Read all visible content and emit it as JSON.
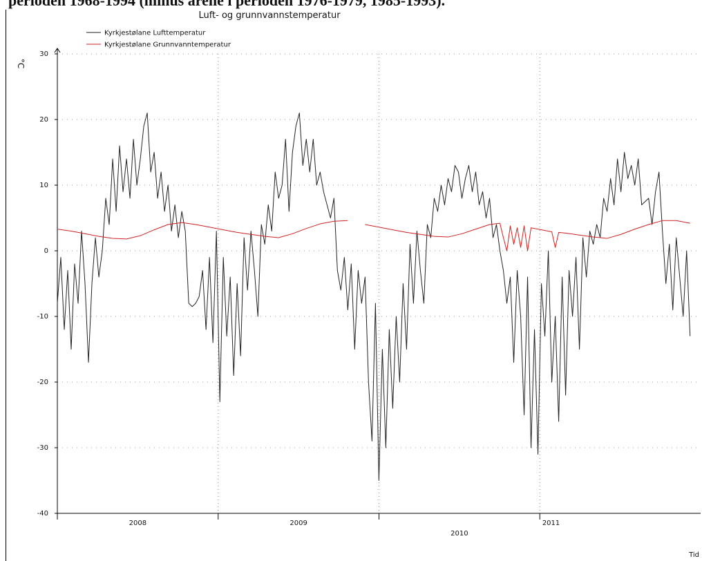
{
  "caption": "perioden 1968-1994 (minus årene i perioden 1976-1979, 1985-1993).",
  "chart_data": {
    "type": "line",
    "title": "Luft- og grunnvannstemperatur",
    "y_label": "°C",
    "x_label": "Tid",
    "xlim": [
      2008,
      2012
    ],
    "xticks": [
      {
        "value": 2008,
        "label": "2008"
      },
      {
        "value": 2009,
        "label": "2009"
      },
      {
        "value": 2010,
        "label": "2010"
      },
      {
        "value": 2011,
        "label": "2011"
      }
    ],
    "ylim": [
      -40,
      30
    ],
    "yticks": [
      -40,
      -30,
      -20,
      -10,
      0,
      10,
      20,
      30
    ],
    "grid": true,
    "legend": "top-left",
    "series": [
      {
        "name": "Kyrkjestølane  Lufttemperatur",
        "color": "#222222",
        "x": [
          2008,
          2008.0215,
          2008.043,
          2008.0645,
          2008.086,
          2008.1075,
          2008.129,
          2008.1505,
          2008.172,
          2008.1935,
          2008.215,
          2008.2365,
          2008.258,
          2008.2795,
          2008.301,
          2008.3225,
          2008.344,
          2008.3655,
          2008.387,
          2008.4085,
          2008.43,
          2008.4515,
          2008.473,
          2008.4945,
          2008.516,
          2008.5375,
          2008.559,
          2008.5805,
          2008.602,
          2008.6235,
          2008.645,
          2008.6665,
          2008.688,
          2008.7095,
          2008.731,
          2008.7525,
          2008.774,
          2008.7955,
          2008.817,
          2008.8385,
          2008.86,
          2008.8815,
          2008.903,
          2008.9245,
          2008.946,
          2008.9675,
          2008.989,
          2009.0105,
          2009.032,
          2009.0535,
          2009.075,
          2009.0965,
          2009.118,
          2009.1395,
          2009.161,
          2009.1825,
          2009.204,
          2009.2255,
          2009.247,
          2009.2685,
          2009.29,
          2009.3115,
          2009.333,
          2009.3545,
          2009.376,
          2009.3975,
          2009.419,
          2009.4405,
          2009.462,
          2009.4835,
          2009.505,
          2009.5265,
          2009.548,
          2009.5695,
          2009.591,
          2009.6125,
          2009.634,
          2009.6555,
          2009.677,
          2009.6985,
          2009.72,
          2009.7415,
          2009.763,
          2009.7845,
          2009.806,
          2009.8275,
          2009.849,
          2009.8705,
          2009.892,
          2009.9135,
          2009.935,
          2009.9565,
          2009.978,
          2009.9995,
          2010.021,
          2010.0425,
          2010.064,
          2010.0855,
          2010.107,
          2010.1285,
          2010.15,
          2010.1715,
          2010.193,
          2010.2145,
          2010.236,
          2010.2575,
          2010.279,
          2010.3005,
          2010.322,
          2010.3435,
          2010.365,
          2010.3865,
          2010.408,
          2010.4295,
          2010.451,
          2010.4725,
          2010.494,
          2010.5155,
          2010.537,
          2010.5585,
          2010.58,
          2010.6015,
          2010.623,
          2010.6445,
          2010.666,
          2010.6875,
          2010.709,
          2010.7305,
          2010.752,
          2010.7735,
          2010.795,
          2010.8165,
          2010.838,
          2010.8595,
          2010.881,
          2010.9025,
          2010.924,
          2010.9455,
          2010.967,
          2010.9885,
          2011.01,
          2011.0315,
          2011.053,
          2011.0745,
          2011.096,
          2011.1175,
          2011.139,
          2011.1605,
          2011.182,
          2011.2035,
          2011.225,
          2011.2465,
          2011.268,
          2011.2895,
          2011.311,
          2011.3325,
          2011.354,
          2011.3755,
          2011.397,
          2011.4185,
          2011.44,
          2011.4615,
          2011.483,
          2011.5045,
          2011.526,
          2011.5475,
          2011.569,
          2011.5905,
          2011.612,
          2011.6335,
          2011.655,
          2011.6765,
          2011.698,
          2011.7195,
          2011.741,
          2011.7625,
          2011.784,
          2011.8055,
          2011.827,
          2011.8485,
          2011.87,
          2011.8915,
          2011.913,
          2011.9345
        ],
        "values": [
          -8,
          -1,
          -12,
          -3,
          -15,
          -2,
          -8,
          3,
          -5,
          -17,
          -5,
          2,
          -4,
          0,
          8,
          4,
          14,
          6,
          16,
          9,
          14,
          8,
          17,
          10,
          14,
          19,
          21,
          12,
          15,
          8,
          12,
          6,
          10,
          3,
          7,
          2,
          6,
          3,
          -8,
          -8.5,
          -8,
          -7,
          -3,
          -12,
          -1,
          -14,
          3,
          -23,
          -1,
          -13,
          -4,
          -19,
          -5,
          -16,
          2,
          -6,
          3,
          -3,
          -10,
          4,
          1,
          7,
          3,
          12,
          8,
          10,
          17,
          6,
          15,
          19,
          21,
          13,
          17,
          12,
          17,
          10,
          12,
          9,
          7,
          5,
          8,
          -3,
          -6,
          -1,
          -9,
          -2,
          -15,
          -3,
          -8,
          -4,
          -20,
          -29,
          -8,
          -35,
          -15,
          -30,
          -12,
          -24,
          -10,
          -20,
          -5,
          -15,
          1,
          -8,
          3,
          -3,
          -8,
          4,
          2,
          8,
          6,
          10,
          7,
          11,
          9,
          13,
          12,
          8,
          11,
          13,
          9,
          12,
          7,
          9,
          5,
          8,
          2,
          4,
          0,
          -3,
          -8,
          -4,
          -17,
          -3,
          -10,
          -25,
          -4,
          -30,
          -12,
          -31,
          -5,
          -13,
          0,
          -20,
          -10,
          -26,
          -4,
          -22,
          -3,
          -10,
          -1,
          -15,
          2,
          -4,
          3,
          1,
          4,
          2,
          8,
          6,
          11,
          7,
          14,
          9,
          15,
          11,
          13,
          10,
          14,
          7,
          7.5,
          8,
          4,
          9,
          12,
          3,
          -5,
          1,
          -9,
          2,
          -4,
          -10,
          0,
          -13
        ]
      },
      {
        "name": "Kyrkjestølane  Grunnvanntemperatur",
        "color": "#cc2222",
        "x": [
          2008,
          2008.086,
          2008.172,
          2008.258,
          2008.344,
          2008.43,
          2008.516,
          2008.602,
          2008.688,
          2008.774,
          2008.86,
          2008.946,
          2009.032,
          2009.118,
          2009.204,
          2009.29,
          2009.376,
          2009.462,
          2009.548,
          2009.634,
          2009.72,
          2009.806,
          2009.849,
          2009.9135,
          2009.9995,
          2010.0855,
          2010.1715,
          2010.2575,
          2010.3435,
          2010.4295,
          2010.5155,
          2010.6015,
          2010.6875,
          2010.752,
          2010.7735,
          2010.795,
          2010.8165,
          2010.838,
          2010.8595,
          2010.881,
          2010.9025,
          2010.924,
          2010.9455,
          2011.01,
          2011.0745,
          2011.096,
          2011.1175,
          2011.1605,
          2011.2465,
          2011.3325,
          2011.4185,
          2011.5045,
          2011.5905,
          2011.6765,
          2011.7625,
          2011.8485,
          2011.9345
        ],
        "values": [
          3.3,
          3.0,
          2.6,
          2.2,
          1.9,
          1.8,
          2.3,
          3.2,
          4.0,
          4.3,
          4.0,
          3.6,
          3.2,
          2.8,
          2.5,
          2.2,
          2.0,
          2.6,
          3.4,
          4.1,
          4.5,
          4.6,
          null,
          4.0,
          3.6,
          3.2,
          2.8,
          2.5,
          2.2,
          2.1,
          2.6,
          3.3,
          4.0,
          4.2,
          2.0,
          0,
          3.8,
          1.0,
          3.5,
          0.5,
          3.8,
          0,
          3.5,
          3.2,
          2.9,
          0.5,
          2.8,
          2.7,
          2.4,
          2.1,
          1.9,
          2.5,
          3.3,
          4.0,
          4.6,
          4.6,
          4.2
        ]
      }
    ]
  }
}
